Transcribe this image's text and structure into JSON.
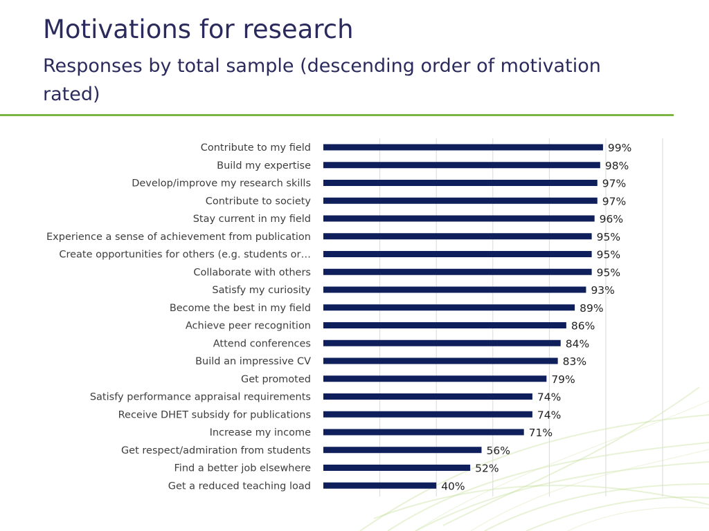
{
  "slide": {
    "title": "Motivations for research",
    "subtitle": "Responses by total sample (descending order of motivation rated)"
  },
  "colors": {
    "bar": "#0e1f5b",
    "title": "#2b2a5c",
    "rule": "#79b540",
    "grid": "#d9d9d9"
  },
  "chart_data": {
    "type": "bar",
    "orientation": "horizontal",
    "categories": [
      "Contribute to my field",
      "Build my expertise",
      "Develop/improve my research skills",
      "Contribute to society",
      "Stay current in my field",
      "Experience a sense of achievement from publication",
      "Create opportunities for others (e.g. students or…",
      "Collaborate with others",
      "Satisfy my curiosity",
      "Become the best in my field",
      "Achieve peer recognition",
      "Attend conferences",
      "Build an impressive CV",
      "Get promoted",
      "Satisfy performance appraisal requirements",
      "Receive DHET subsidy for publications",
      "Increase my income",
      "Get respect/admiration from students",
      "Find a better job elsewhere",
      "Get a reduced teaching load"
    ],
    "values": [
      99,
      98,
      97,
      97,
      96,
      95,
      95,
      95,
      93,
      89,
      86,
      84,
      83,
      79,
      74,
      74,
      71,
      56,
      52,
      40
    ],
    "value_labels": [
      "99%",
      "98%",
      "97%",
      "97%",
      "96%",
      "95%",
      "95%",
      "95%",
      "93%",
      "89%",
      "86%",
      "84%",
      "83%",
      "79%",
      "74%",
      "74%",
      "71%",
      "56%",
      "52%",
      "40%"
    ],
    "xlim": [
      0,
      100
    ],
    "grid": true,
    "legend": "none"
  }
}
